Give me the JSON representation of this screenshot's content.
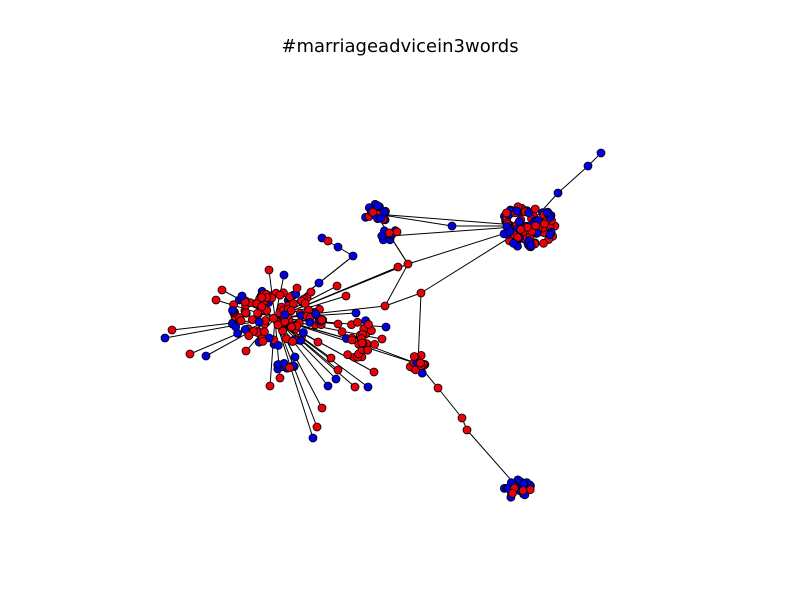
{
  "title": "#marriageadvicein3words",
  "node_colors": {
    "red": "#e8000b",
    "blue": "#0000e0",
    "stroke": "#000000",
    "edge": "#000000"
  },
  "legend": null
}
